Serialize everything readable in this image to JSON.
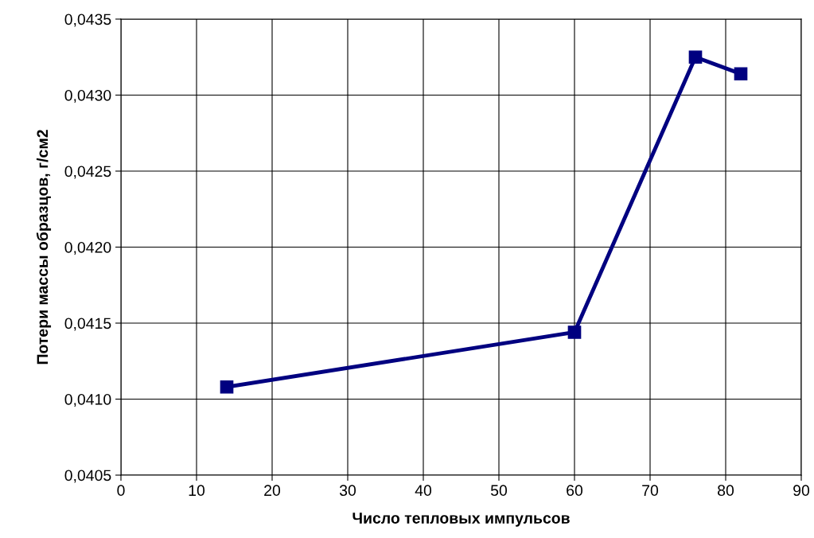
{
  "chart_data": {
    "type": "line",
    "xlabel": "Число тепловых импульсов",
    "ylabel": "Потери массы образцов, г/см2",
    "x": [
      14,
      60,
      76,
      82
    ],
    "series": [
      {
        "color": "#000080",
        "values": [
          0.04108,
          0.04144,
          0.04325,
          0.04314
        ]
      }
    ],
    "xlim": [
      0,
      90
    ],
    "xticks": [
      0,
      10,
      20,
      30,
      40,
      50,
      60,
      70,
      80,
      90
    ],
    "ylim": [
      0.0405,
      0.0435
    ],
    "yticks": [
      {
        "value": 0.0405,
        "label": "0,0405"
      },
      {
        "value": 0.041,
        "label": "0,0410"
      },
      {
        "value": 0.0415,
        "label": "0,0415"
      },
      {
        "value": 0.042,
        "label": "0,0420"
      },
      {
        "value": 0.0425,
        "label": "0,0425"
      },
      {
        "value": 0.043,
        "label": "0,0430"
      },
      {
        "value": 0.0435,
        "label": "0,0435"
      }
    ],
    "grid": true,
    "marker": "square",
    "line_style": "solid"
  }
}
